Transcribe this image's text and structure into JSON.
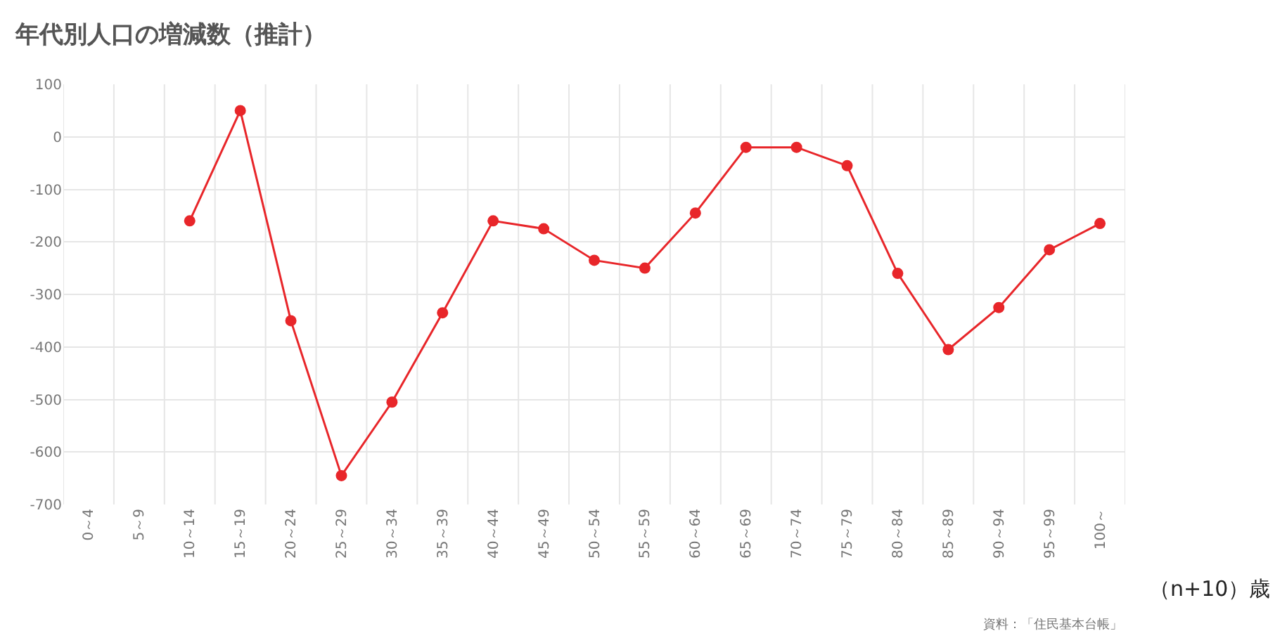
{
  "chart_data": {
    "type": "line",
    "title": "年代別人口の増減数（推計）",
    "xlabel": "（n+10）歳",
    "categories": [
      "0～4",
      "5～9",
      "10～14",
      "15～19",
      "20～24",
      "25～29",
      "30～34",
      "35～39",
      "40～44",
      "45～49",
      "50～54",
      "55～59",
      "60～64",
      "65～69",
      "70～74",
      "75～79",
      "80～84",
      "85～89",
      "90～94",
      "95～99",
      "100～"
    ],
    "series": [
      {
        "color": "#e8262a",
        "values": [
          null,
          null,
          -160,
          50,
          -350,
          -645,
          -505,
          -335,
          -160,
          -175,
          -235,
          -250,
          -145,
          -20,
          -20,
          -55,
          -260,
          -405,
          -325,
          -215,
          -165
        ]
      }
    ],
    "ylim": [
      -700,
      100
    ],
    "yticks": [
      100,
      0,
      -100,
      -200,
      -300,
      -400,
      -500,
      -600,
      -700
    ],
    "grid": true,
    "marker": "circle",
    "line_style": "solid",
    "annotations": [
      "資料：「住民基本台帳」"
    ]
  }
}
